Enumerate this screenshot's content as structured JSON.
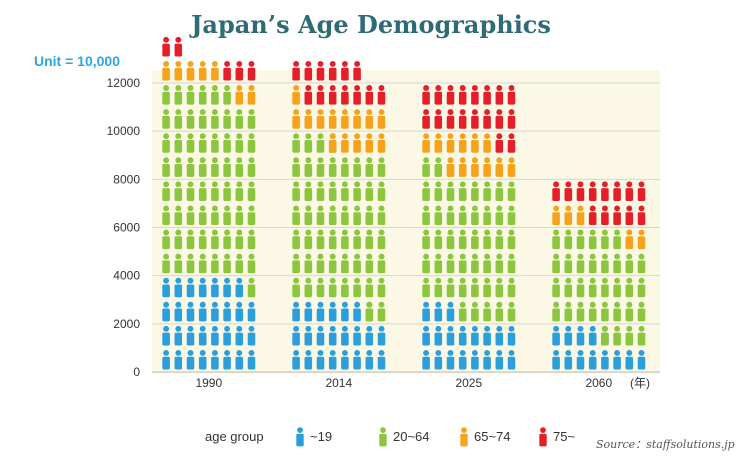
{
  "title": "Japan’s Age Demographics",
  "unit_label": "Unit = 10,000",
  "source": "Source：staffsolutions.jp",
  "chart_data": {
    "type": "bar",
    "stacked": true,
    "title": "Japan’s Age Demographics",
    "xlabel": "",
    "ylabel": "",
    "x_unit": "(年)",
    "categories": [
      "1990",
      "2014",
      "2025",
      "2060"
    ],
    "series": [
      {
        "name": "~19",
        "values": [
          3900,
          2850,
          2400,
          1600
        ],
        "color": "#2a9fdc"
      },
      {
        "name": "20~64",
        "values": [
          7900,
          6600,
          5950,
          4150
        ],
        "color": "#8cc63f"
      },
      {
        "name": "65~74",
        "values": [
          850,
          1750,
          1450,
          700
        ],
        "color": "#f7a21b"
      },
      {
        "name": "75~",
        "values": [
          550,
          1550,
          2150,
          1600
        ],
        "color": "#e51f2a"
      }
    ],
    "ylim": [
      0,
      13000
    ],
    "yticks": [
      0,
      2000,
      4000,
      6000,
      8000,
      10000,
      12000
    ],
    "grid": true,
    "legend": {
      "title": "age group",
      "position": "bottom"
    }
  }
}
